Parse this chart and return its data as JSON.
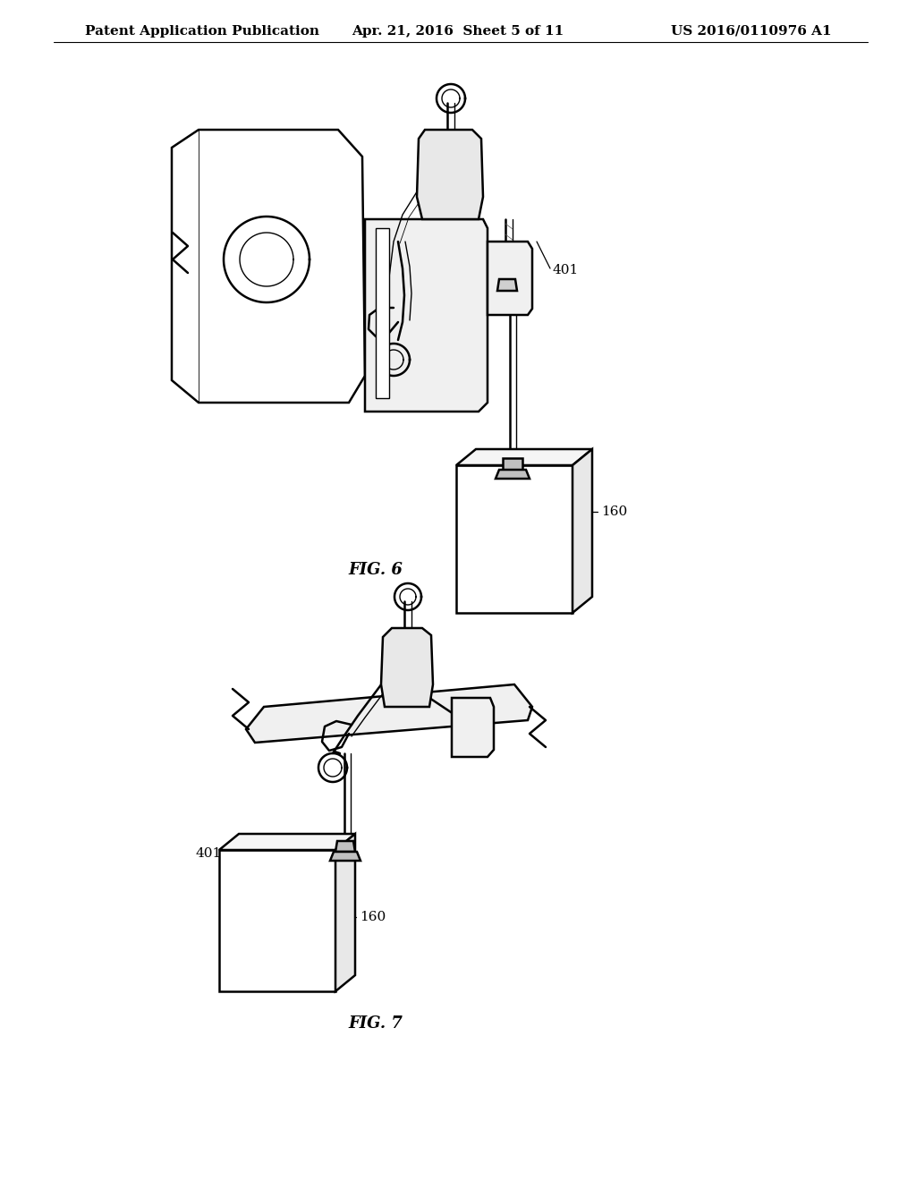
{
  "background_color": "#ffffff",
  "header_left": "Patent Application Publication",
  "header_center": "Apr. 21, 2016  Sheet 5 of 11",
  "header_right": "US 2016/0110976 A1",
  "fig6_label": "FIG. 6",
  "fig7_label": "FIG. 7",
  "ref_401_fig6": "401",
  "ref_160_fig6": "160",
  "ref_401_fig7": "401",
  "ref_160_fig7": "160",
  "line_color": "#000000",
  "header_fontsize": 11,
  "fig_label_fontsize": 13,
  "ref_fontsize": 11
}
